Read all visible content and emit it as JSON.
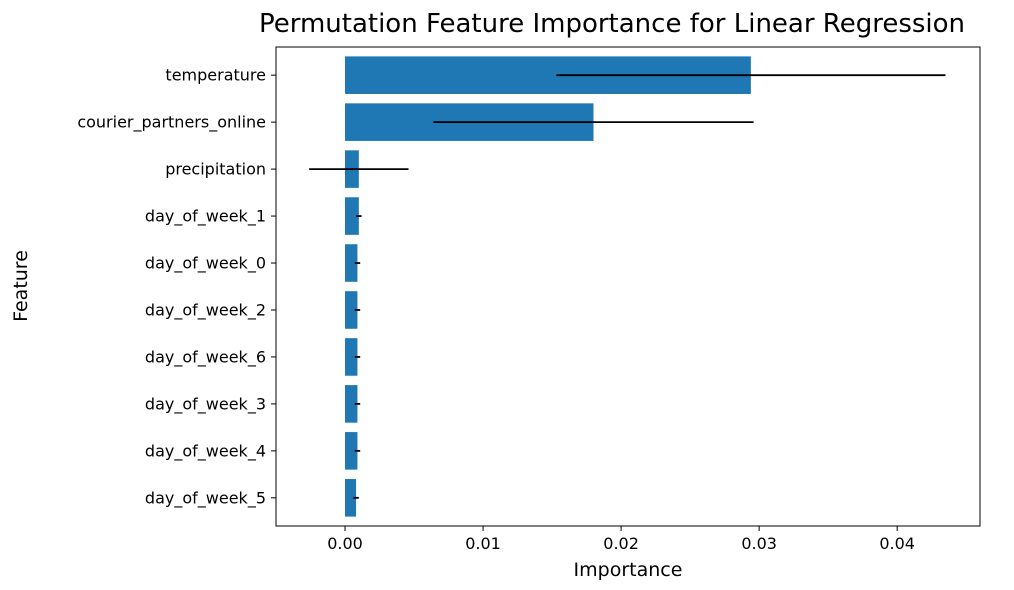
{
  "chart_data": {
    "type": "bar",
    "orientation": "horizontal",
    "title": "Permutation Feature Importance for Linear Regression",
    "xlabel": "Importance",
    "ylabel": "Feature",
    "categories": [
      "temperature",
      "courier_partners_online",
      "precipitation",
      "day_of_week_1",
      "day_of_week_0",
      "day_of_week_2",
      "day_of_week_6",
      "day_of_week_3",
      "day_of_week_4",
      "day_of_week_5"
    ],
    "values": [
      0.0294,
      0.018,
      0.001,
      0.001,
      0.0009,
      0.0009,
      0.0009,
      0.0009,
      0.0009,
      0.0008
    ],
    "errors": [
      0.0141,
      0.0116,
      0.0036,
      0.0002,
      0.0002,
      0.0002,
      0.0002,
      0.0002,
      0.0002,
      0.0002
    ],
    "xlim": [
      -0.005,
      0.046
    ],
    "xticks": [
      0.0,
      0.01,
      0.02,
      0.03,
      0.04
    ],
    "xtick_labels": [
      "0.00",
      "0.01",
      "0.02",
      "0.03",
      "0.04"
    ],
    "grid": false,
    "bar_color": "#1f77b4",
    "error_color": "#000000"
  }
}
